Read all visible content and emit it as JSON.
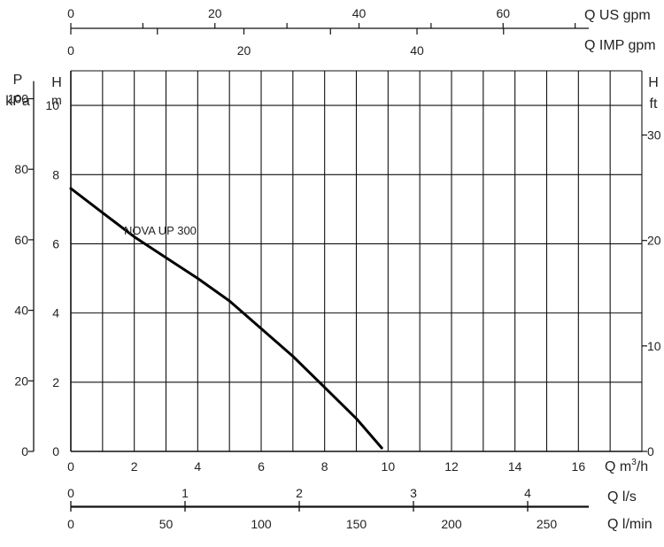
{
  "chart_data": {
    "type": "line",
    "title": "",
    "xlabel": "Q m³/h",
    "ylabel": "H m",
    "xlim": [
      0,
      18
    ],
    "ylim": [
      0,
      11
    ],
    "grid": true,
    "series": [
      {
        "name": "NOVA UP 300",
        "x": [
          0,
          1,
          2,
          3,
          4,
          5,
          5.5,
          6,
          7,
          8,
          9,
          9.8
        ],
        "y": [
          7.6,
          6.9,
          6.2,
          5.6,
          5.0,
          4.35,
          3.95,
          3.55,
          2.75,
          1.85,
          0.95,
          0.1
        ]
      }
    ],
    "axes": {
      "x_main": {
        "label_q": "Q",
        "label_unit": "m",
        "label_sup": "3",
        "label_end": "/h",
        "ticks": [
          0,
          2,
          4,
          6,
          8,
          10,
          12,
          14,
          16
        ]
      },
      "x_ls": {
        "label": "Q l/s",
        "ticks": [
          0,
          1,
          2,
          3,
          4
        ]
      },
      "x_lmin": {
        "label": "Q l/min",
        "ticks": [
          0,
          50,
          100,
          150,
          200,
          250
        ]
      },
      "x_us_gpm": {
        "label": "Q US gpm",
        "ticks": [
          0,
          20,
          40,
          60
        ]
      },
      "x_imp_gpm": {
        "label": "Q IMP gpm",
        "ticks": [
          0,
          20,
          40
        ]
      },
      "y_m": {
        "label_1": "H",
        "label_2": "m",
        "ticks": [
          0,
          2,
          4,
          6,
          8,
          10
        ]
      },
      "y_kpa": {
        "label_1": "P",
        "label_2": "kPa",
        "ticks": [
          0,
          20,
          40,
          60,
          80,
          100
        ]
      },
      "y_ft": {
        "label_1": "H",
        "label_2": "ft",
        "ticks": [
          0,
          10,
          20,
          30
        ]
      }
    },
    "curve_label": "NOVA UP 300"
  }
}
